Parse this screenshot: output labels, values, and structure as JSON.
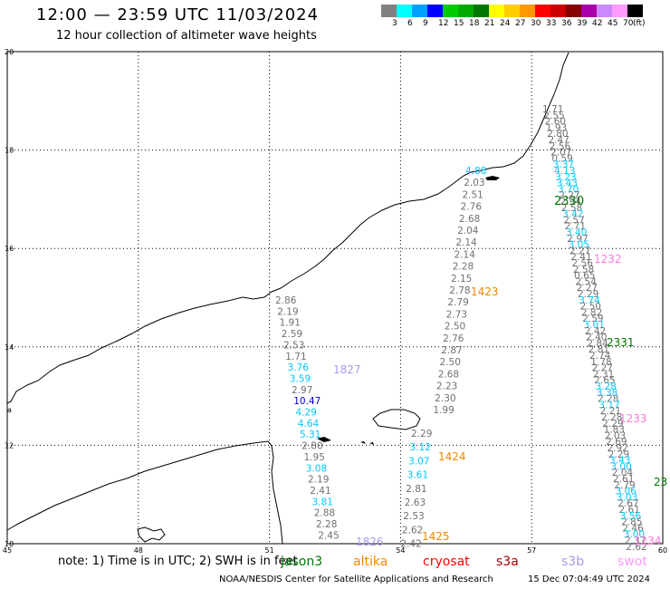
{
  "header": {
    "title": "12:00 — 23:59 UTC 11/03/2024",
    "subtitle": "12 hour collection of altimeter wave heights"
  },
  "legend": {
    "colors": [
      "#808080",
      "#00ffff",
      "#00a0ff",
      "#0000ff",
      "#00cc00",
      "#00aa00",
      "#007700",
      "#ffff00",
      "#ffcc00",
      "#ff9900",
      "#ff0000",
      "#cc0000",
      "#880000",
      "#aa00aa",
      "#cc88ff",
      "#ff99ff",
      "#000000"
    ],
    "labels": [
      "3",
      "6",
      "9",
      "12",
      "15",
      "18",
      "21",
      "24",
      "27",
      "30",
      "33",
      "36",
      "39",
      "42",
      "45",
      "70",
      "(ft)"
    ]
  },
  "axes": {
    "lon_labels": [
      "45",
      "48",
      "51",
      "54",
      "57",
      "60"
    ],
    "lat_labels": [
      "20",
      "18",
      "16",
      "14",
      "12",
      "10"
    ]
  },
  "map": {
    "island_label": "a"
  },
  "track_labels": [
    {
      "text": "2330",
      "color": "#007700"
    },
    {
      "text": "1232",
      "color": "#ff77dd"
    },
    {
      "text": "1423",
      "color": "#ee8800"
    },
    {
      "text": "1827",
      "color": "#aa99ee"
    },
    {
      "text": "2331",
      "color": "#007700"
    },
    {
      "text": "1233",
      "color": "#ff77dd"
    },
    {
      "text": "1424",
      "color": "#ee8800"
    },
    {
      "text": "23",
      "color": "#007700"
    },
    {
      "text": "1425",
      "color": "#ee8800"
    },
    {
      "text": "1826",
      "color": "#aa99ee"
    },
    {
      "text": "1234",
      "color": "#ff77dd"
    }
  ],
  "wave_heights": {
    "track_a": [
      "4.88",
      "2.03",
      "2.51",
      "2.76",
      "2.68",
      "2.04",
      "2.14",
      "2.14",
      "2.28",
      "2.15",
      "2.78",
      "2.79",
      "2.73",
      "2.50",
      "2.76",
      "2.87",
      "2.50",
      "2.68",
      "2.23",
      "2.30",
      "1.99"
    ],
    "track_b": [
      "2.86",
      "2.19",
      "1.91",
      "2.59",
      "2.53",
      "1.71",
      "3.76",
      "3.59",
      "2.97",
      "10.47",
      "4.29",
      "4.64",
      "5.31",
      "2.80",
      "1.95",
      "3.08",
      "2.19",
      "2.41",
      "3.81",
      "2.88",
      "2.28",
      "2.45"
    ],
    "track_c": [
      "2.29",
      "3.12",
      "3.07",
      "3.61",
      "2.81",
      "2.63",
      "2.53",
      "2.62",
      "2.42"
    ],
    "track_d": [
      "1.71",
      "2.55",
      "2.60",
      "1.93",
      "2.80",
      "2.47",
      "2.56",
      "2.07",
      "0.59",
      "3.37",
      "4.13",
      "3.23",
      "3.43",
      "3.70",
      "2.27",
      "2.94",
      "2.58",
      "3.42",
      "2.57",
      "2.71",
      "3.40",
      "2.97",
      "3.05",
      "2.27",
      "2.41",
      "2.56",
      "2.58",
      "0.65",
      "2.54",
      "2.27",
      "2.29",
      "3.74",
      "2.50",
      "2.82",
      "2.59",
      "3.01",
      "2.42",
      "2.40",
      "2.84",
      "2.81",
      "2.74",
      "1.78",
      "2.27",
      "2.31",
      "2.65",
      "3.28",
      "3.38",
      "2.28",
      "3.17",
      "2.21",
      "2.28",
      "2.29",
      "1.83",
      "2.03",
      "2.69",
      "2.92",
      "2.29",
      "3.43",
      "3.00",
      "2.04",
      "2.61",
      "2.79",
      "3.06",
      "3.03",
      "2.67",
      "2.61",
      "3.56",
      "2.85",
      "2.46",
      "3.00",
      "2.37",
      "2.62"
    ]
  },
  "footer": {
    "note": "note: 1) Time is in UTC; 2) SWH is in feet",
    "satellites": [
      {
        "name": "jason3",
        "color": "#007700"
      },
      {
        "name": "altika",
        "color": "#ee8800"
      },
      {
        "name": "cryosat",
        "color": "#ff0000"
      },
      {
        "name": "s3a",
        "color": "#aa0000"
      },
      {
        "name": "s3b",
        "color": "#aa99ee"
      },
      {
        "name": "swot",
        "color": "#ff99ff"
      }
    ],
    "credit": "NOAA/NESDIS Center for Satellite Applications and Research",
    "timestamp": "15 Dec 07:04:49 UTC 2024"
  }
}
